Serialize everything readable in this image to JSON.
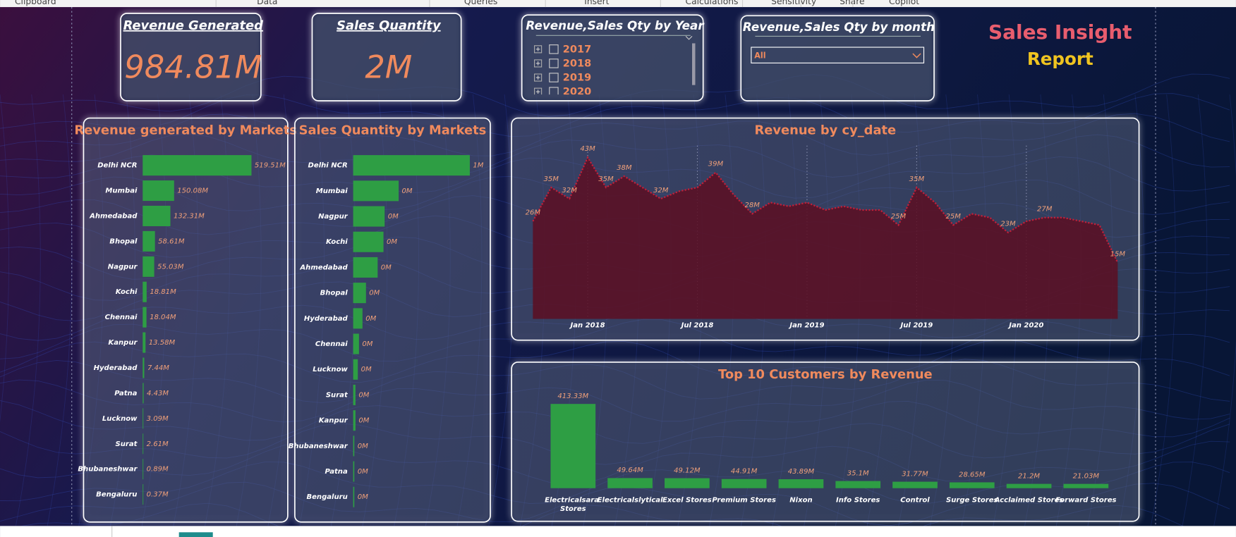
{
  "ribbon": [
    "Clipboard",
    "Data",
    "Queries",
    "Insert",
    "Calculations",
    "Sensitivity",
    "Share",
    "Copilot"
  ],
  "cards": [
    {
      "title": "Revenue Generated",
      "value": "984.81M"
    },
    {
      "title": "Sales Quantity",
      "value": "2M"
    }
  ],
  "slicers": {
    "year": {
      "title": "Revenue,Sales Qty by Year",
      "items": [
        "2017",
        "2018",
        "2019",
        "2020"
      ]
    },
    "month": {
      "title": "Revenue,Sales Qty by month",
      "selection": "All"
    }
  },
  "report_title": [
    "Sales Insight",
    "Report"
  ],
  "chart_data": [
    {
      "type": "hbar",
      "title": "Revenue generated by Markets",
      "color": "#2e9e44",
      "categories": [
        "Delhi NCR",
        "Mumbai",
        "Ahmedabad",
        "Bhopal",
        "Nagpur",
        "Kochi",
        "Chennai",
        "Kanpur",
        "Hyderabad",
        "Patna",
        "Lucknow",
        "Surat",
        "Bhubaneshwar",
        "Bengaluru"
      ],
      "values": [
        519.51,
        150.08,
        132.31,
        58.61,
        55.03,
        18.81,
        18.04,
        13.58,
        7.44,
        4.43,
        3.09,
        2.61,
        0.89,
        0.37
      ],
      "value_labels": [
        "519.51M",
        "150.08M",
        "132.31M",
        "58.61M",
        "55.03M",
        "18.81M",
        "18.04M",
        "13.58M",
        "7.44M",
        "4.43M",
        "3.09M",
        "2.61M",
        "0.89M",
        "0.37M"
      ]
    },
    {
      "type": "hbar",
      "title": "Sales Quantity by Markets",
      "color": "#2e9e44",
      "categories": [
        "Delhi NCR",
        "Mumbai",
        "Nagpur",
        "Kochi",
        "Ahmedabad",
        "Bhopal",
        "Hyderabad",
        "Chennai",
        "Lucknow",
        "Surat",
        "Kanpur",
        "Bhubaneshwar",
        "Patna",
        "Bengaluru"
      ],
      "values": [
        1,
        0.39,
        0.27,
        0.26,
        0.21,
        0.11,
        0.08,
        0.05,
        0.04,
        0.02,
        0.02,
        0.01,
        0.01,
        0.01
      ],
      "value_labels": [
        "1M",
        "0M",
        "0M",
        "0M",
        "0M",
        "0M",
        "0M",
        "0M",
        "0M",
        "0M",
        "0M",
        "0M",
        "0M",
        "0M"
      ]
    },
    {
      "type": "area",
      "title": "Revenue by cy_date",
      "color": "#c0203a",
      "x": [
        "2017-10",
        "2017-11",
        "2017-12",
        "2018-01",
        "2018-02",
        "2018-03",
        "2018-04",
        "2018-05",
        "2018-06",
        "2018-07",
        "2018-08",
        "2018-09",
        "2018-10",
        "2018-11",
        "2018-12",
        "2019-01",
        "2019-02",
        "2019-03",
        "2019-04",
        "2019-05",
        "2019-06",
        "2019-07",
        "2019-08",
        "2019-09",
        "2019-10",
        "2019-11",
        "2019-12",
        "2020-01",
        "2020-02",
        "2020-03",
        "2020-04",
        "2020-05",
        "2020-06"
      ],
      "values": [
        26,
        35,
        32,
        43,
        35,
        38,
        35,
        32,
        34,
        35,
        39,
        33,
        28,
        31,
        30,
        31,
        29,
        30,
        29,
        29,
        25,
        35,
        31,
        25,
        28,
        27,
        23,
        26,
        27,
        27,
        26,
        25,
        15
      ],
      "value_labels": [
        "26M",
        "35M",
        "32M",
        "43M",
        "35M",
        "38M",
        null,
        "32M",
        null,
        null,
        "39M",
        null,
        "28M",
        null,
        null,
        null,
        null,
        null,
        null,
        null,
        "25M",
        "35M",
        null,
        "25M",
        null,
        null,
        "23M",
        null,
        "27M",
        null,
        null,
        null,
        "15M"
      ],
      "xticks": [
        {
          "value": "2018-01",
          "label": "Jan 2018"
        },
        {
          "value": "2018-07",
          "label": "Jul 2018"
        },
        {
          "value": "2019-01",
          "label": "Jan 2019"
        },
        {
          "value": "2019-07",
          "label": "Jul 2019"
        },
        {
          "value": "2020-01",
          "label": "Jan 2020"
        }
      ]
    },
    {
      "type": "bar",
      "title": "Top 10 Customers by Revenue",
      "color": "#2e9e44",
      "categories": [
        "Electricalsara Stores",
        "Electricalslytical",
        "Excel Stores",
        "Premium Stores",
        "Nixon",
        "Info Stores",
        "Control",
        "Surge Stores",
        "Acclaimed Stores",
        "Forward Stores"
      ],
      "values": [
        413.33,
        49.64,
        49.12,
        44.91,
        43.89,
        35.1,
        31.77,
        28.65,
        21.2,
        21.03
      ],
      "value_labels": [
        "413.33M",
        "49.64M",
        "49.12M",
        "44.91M",
        "43.89M",
        "35.1M",
        "31.77M",
        "28.65M",
        "21.2M",
        "21.03M"
      ]
    }
  ]
}
